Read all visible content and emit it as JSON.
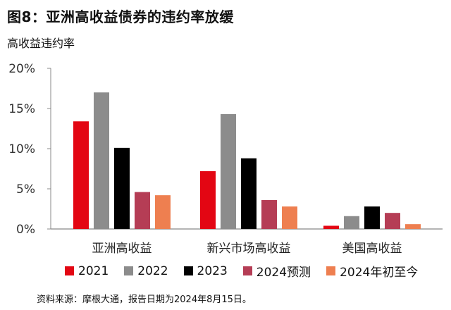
{
  "figure_title": "图8：亚洲高收益债券的违约率放缓",
  "source_note": "资料来源：摩根大通，报告日期为2024年8月15日。",
  "chart_data": {
    "type": "bar",
    "title": "高收益违约率",
    "categories": [
      "亚洲高收益",
      "新兴市场高收益",
      "美国高收益"
    ],
    "series": [
      {
        "name": "2021",
        "color": "#e30613",
        "values": [
          13.4,
          7.2,
          0.4
        ]
      },
      {
        "name": "2022",
        "color": "#8c8c8c",
        "values": [
          17.0,
          14.3,
          1.6
        ]
      },
      {
        "name": "2023",
        "color": "#000000",
        "values": [
          10.1,
          8.8,
          2.8
        ]
      },
      {
        "name": "2024预测",
        "color": "#b53d55",
        "values": [
          4.6,
          3.6,
          2.0
        ]
      },
      {
        "name": "2024年初至今",
        "color": "#ee7f50",
        "values": [
          4.2,
          2.8,
          0.6
        ]
      }
    ],
    "ylim": [
      0,
      20
    ],
    "yticks": [
      "0%",
      "5%",
      "10%",
      "15%",
      "20%"
    ],
    "ytick_values": [
      0,
      5,
      10,
      15,
      20
    ],
    "xlabel": "",
    "ylabel": "",
    "legend_position": "bottom",
    "grid": false
  }
}
